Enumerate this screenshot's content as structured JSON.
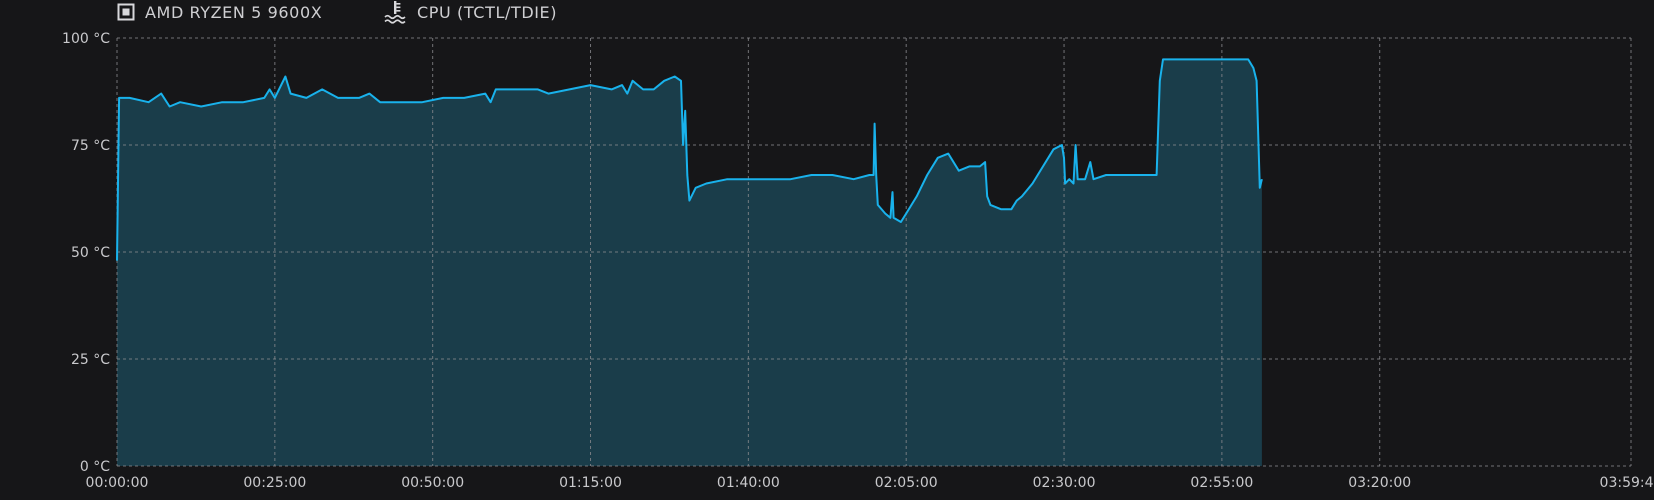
{
  "legend": {
    "chip": {
      "icon": "cpu-chip-icon",
      "label": "AMD RYZEN 5 9600X"
    },
    "sensor": {
      "icon": "temperature-icon",
      "label": "CPU (TCTL/TDIE)"
    }
  },
  "colors": {
    "background": "#161618",
    "line": "#19b2ec",
    "fill": "#1a3d4a",
    "grid": "#8a8a8e"
  },
  "chart_data": {
    "type": "area",
    "title": "",
    "xlabel": "",
    "ylabel": "",
    "x_range_seconds": [
      0,
      14388
    ],
    "ylim": [
      0,
      100
    ],
    "grid": true,
    "legend_position": "top-left",
    "y_ticks": [
      {
        "value": 0,
        "label": "0 °C"
      },
      {
        "value": 25,
        "label": "25 °C"
      },
      {
        "value": 50,
        "label": "50 °C"
      },
      {
        "value": 75,
        "label": "75 °C"
      },
      {
        "value": 100,
        "label": "100 °C"
      }
    ],
    "x_ticks": [
      {
        "t": 0,
        "label": "00:00:00"
      },
      {
        "t": 1500,
        "label": "00:25:00"
      },
      {
        "t": 3000,
        "label": "00:50:00"
      },
      {
        "t": 4500,
        "label": "01:15:00"
      },
      {
        "t": 6000,
        "label": "01:40:00"
      },
      {
        "t": 7500,
        "label": "02:05:00"
      },
      {
        "t": 9000,
        "label": "02:30:00"
      },
      {
        "t": 10500,
        "label": "02:55:00"
      },
      {
        "t": 12000,
        "label": "03:20:00"
      },
      {
        "t": 14388,
        "label": "03:59:48"
      }
    ],
    "series": [
      {
        "x_unit": "seconds",
        "y_unit": "°C",
        "points": [
          [
            0,
            48
          ],
          [
            20,
            86
          ],
          [
            120,
            86
          ],
          [
            300,
            85
          ],
          [
            420,
            87
          ],
          [
            500,
            84
          ],
          [
            600,
            85
          ],
          [
            800,
            84
          ],
          [
            1000,
            85
          ],
          [
            1200,
            85
          ],
          [
            1400,
            86
          ],
          [
            1450,
            88
          ],
          [
            1500,
            86
          ],
          [
            1600,
            91
          ],
          [
            1650,
            87
          ],
          [
            1800,
            86
          ],
          [
            1950,
            88
          ],
          [
            2100,
            86
          ],
          [
            2300,
            86
          ],
          [
            2400,
            87
          ],
          [
            2500,
            85
          ],
          [
            2700,
            85
          ],
          [
            2900,
            85
          ],
          [
            3100,
            86
          ],
          [
            3300,
            86
          ],
          [
            3500,
            87
          ],
          [
            3550,
            85
          ],
          [
            3600,
            88
          ],
          [
            3800,
            88
          ],
          [
            4000,
            88
          ],
          [
            4100,
            87
          ],
          [
            4300,
            88
          ],
          [
            4500,
            89
          ],
          [
            4700,
            88
          ],
          [
            4800,
            89
          ],
          [
            4850,
            87
          ],
          [
            4900,
            90
          ],
          [
            5000,
            88
          ],
          [
            5100,
            88
          ],
          [
            5200,
            90
          ],
          [
            5300,
            91
          ],
          [
            5360,
            90
          ],
          [
            5380,
            75
          ],
          [
            5400,
            83
          ],
          [
            5420,
            68
          ],
          [
            5440,
            62
          ],
          [
            5500,
            65
          ],
          [
            5600,
            66
          ],
          [
            5800,
            67
          ],
          [
            6000,
            67
          ],
          [
            6200,
            67
          ],
          [
            6400,
            67
          ],
          [
            6600,
            68
          ],
          [
            6800,
            68
          ],
          [
            7000,
            67
          ],
          [
            7150,
            68
          ],
          [
            7190,
            68
          ],
          [
            7200,
            80
          ],
          [
            7215,
            68
          ],
          [
            7230,
            61
          ],
          [
            7300,
            59
          ],
          [
            7350,
            58
          ],
          [
            7370,
            64
          ],
          [
            7380,
            58
          ],
          [
            7450,
            57
          ],
          [
            7500,
            59
          ],
          [
            7600,
            63
          ],
          [
            7700,
            68
          ],
          [
            7800,
            72
          ],
          [
            7900,
            73
          ],
          [
            8000,
            69
          ],
          [
            8100,
            70
          ],
          [
            8200,
            70
          ],
          [
            8250,
            71
          ],
          [
            8270,
            63
          ],
          [
            8300,
            61
          ],
          [
            8400,
            60
          ],
          [
            8500,
            60
          ],
          [
            8550,
            62
          ],
          [
            8600,
            63
          ],
          [
            8700,
            66
          ],
          [
            8800,
            70
          ],
          [
            8900,
            74
          ],
          [
            8980,
            75
          ],
          [
            9000,
            72
          ],
          [
            9010,
            66
          ],
          [
            9050,
            67
          ],
          [
            9090,
            66
          ],
          [
            9110,
            75
          ],
          [
            9130,
            67
          ],
          [
            9200,
            67
          ],
          [
            9250,
            71
          ],
          [
            9280,
            67
          ],
          [
            9400,
            68
          ],
          [
            9600,
            68
          ],
          [
            9800,
            68
          ],
          [
            9880,
            68
          ],
          [
            9910,
            90
          ],
          [
            9940,
            95
          ],
          [
            10000,
            95
          ],
          [
            10200,
            95
          ],
          [
            10400,
            95
          ],
          [
            10600,
            95
          ],
          [
            10750,
            95
          ],
          [
            10800,
            93
          ],
          [
            10830,
            90
          ],
          [
            10860,
            65
          ],
          [
            10880,
            67
          ]
        ]
      }
    ]
  }
}
